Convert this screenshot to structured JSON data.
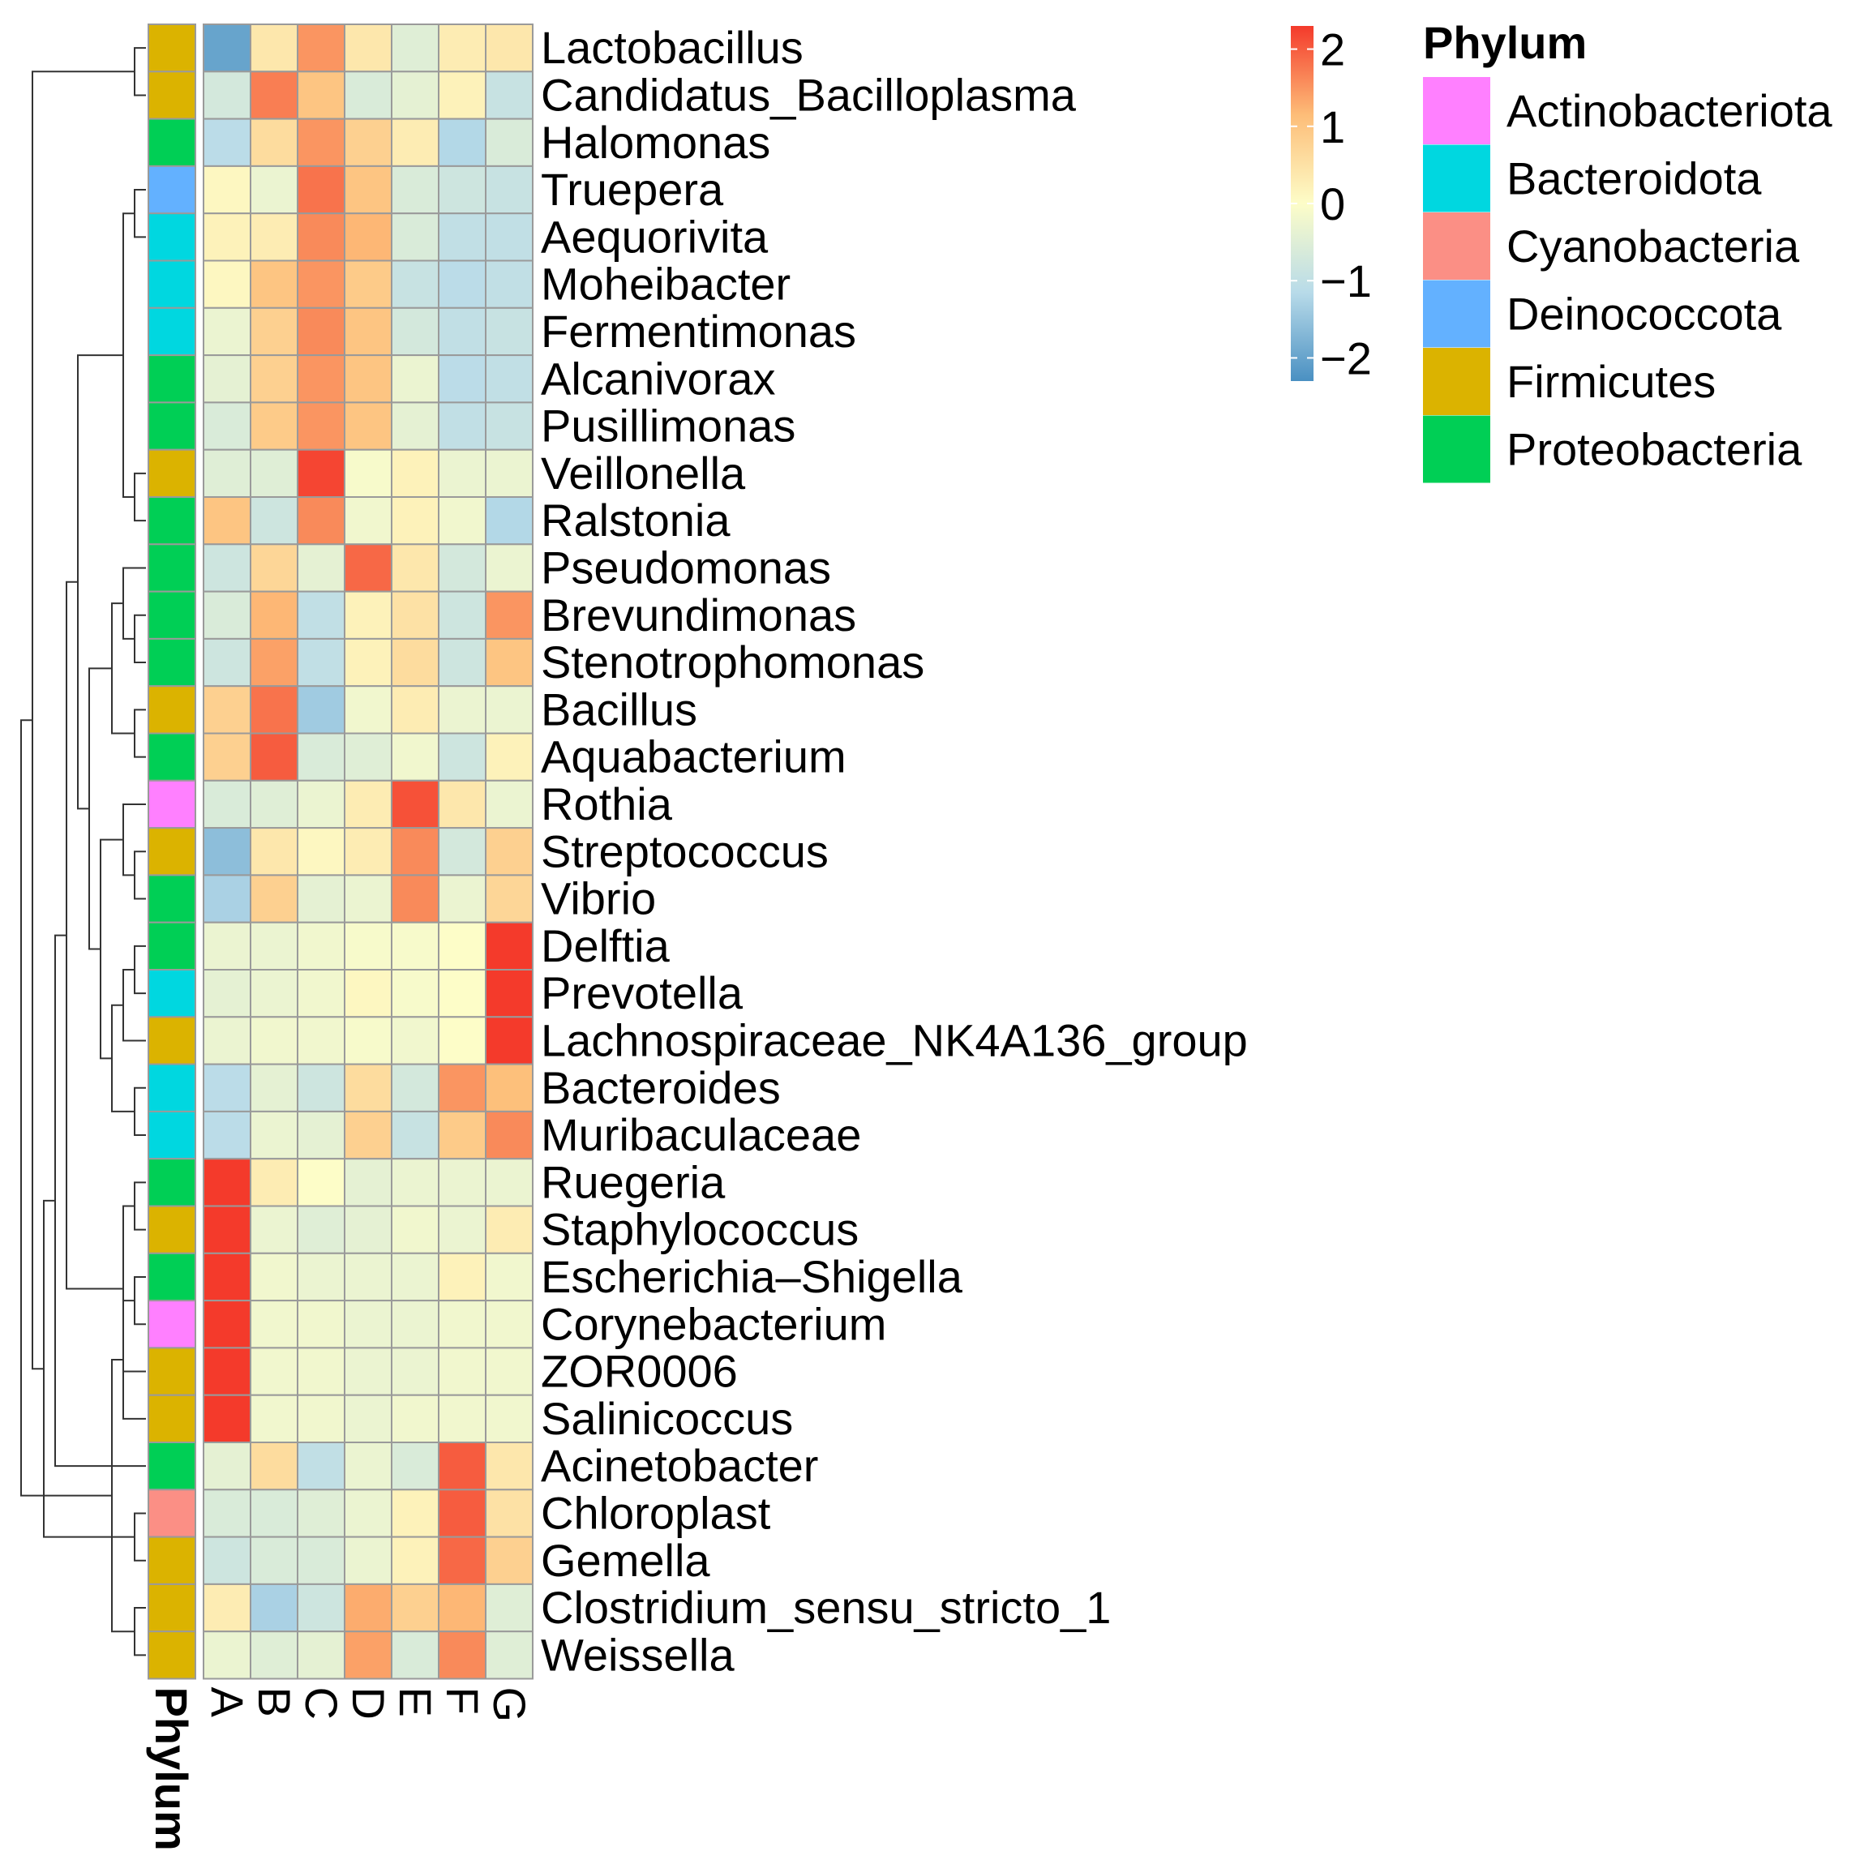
{
  "chart_data": {
    "type": "heatmap",
    "title": "",
    "columns": [
      "A",
      "B",
      "C",
      "D",
      "E",
      "F",
      "G"
    ],
    "annotation_column_label": "Phylum",
    "rows": [
      {
        "name": "Lactobacillus",
        "phylum": "Firmicutes",
        "values": [
          -2.0,
          0.4,
          1.5,
          0.4,
          -0.5,
          0.3,
          0.4
        ]
      },
      {
        "name": "Candidatus_Bacilloplasma",
        "phylum": "Firmicutes",
        "values": [
          -0.7,
          1.7,
          1.0,
          -0.6,
          -0.4,
          0.2,
          -0.9
        ]
      },
      {
        "name": "Halomonas",
        "phylum": "Proteobacteria",
        "values": [
          -1.1,
          0.6,
          1.5,
          0.8,
          0.3,
          -1.2,
          -0.6
        ]
      },
      {
        "name": "Truepera",
        "phylum": "Deinococcota",
        "values": [
          0.1,
          -0.3,
          1.8,
          1.0,
          -0.6,
          -0.8,
          -0.9
        ]
      },
      {
        "name": "Aequorivita",
        "phylum": "Bacteroidota",
        "values": [
          0.2,
          0.3,
          1.6,
          1.2,
          -0.6,
          -1.0,
          -1.0
        ]
      },
      {
        "name": "Moheibacter",
        "phylum": "Bacteroidota",
        "values": [
          0.1,
          1.0,
          1.5,
          0.9,
          -0.9,
          -1.1,
          -1.0
        ]
      },
      {
        "name": "Fermentimonas",
        "phylum": "Bacteroidota",
        "values": [
          -0.3,
          0.8,
          1.6,
          1.0,
          -0.7,
          -1.0,
          -0.9
        ]
      },
      {
        "name": "Alcanivorax",
        "phylum": "Proteobacteria",
        "values": [
          -0.4,
          0.8,
          1.5,
          1.0,
          -0.3,
          -1.1,
          -1.0
        ]
      },
      {
        "name": "Pusillimonas",
        "phylum": "Proteobacteria",
        "values": [
          -0.6,
          0.9,
          1.5,
          1.0,
          -0.4,
          -1.0,
          -0.9
        ]
      },
      {
        "name": "Veillonella",
        "phylum": "Firmicutes",
        "values": [
          -0.5,
          -0.5,
          2.2,
          -0.1,
          0.2,
          -0.3,
          -0.3
        ]
      },
      {
        "name": "Ralstonia",
        "phylum": "Proteobacteria",
        "values": [
          1.0,
          -0.8,
          1.6,
          -0.2,
          0.2,
          -0.2,
          -1.2
        ]
      },
      {
        "name": "Pseudomonas",
        "phylum": "Proteobacteria",
        "values": [
          -0.8,
          0.7,
          -0.4,
          1.9,
          0.4,
          -0.7,
          -0.3
        ]
      },
      {
        "name": "Brevundimonas",
        "phylum": "Proteobacteria",
        "values": [
          -0.6,
          1.2,
          -1.0,
          0.2,
          0.5,
          -0.8,
          1.5
        ]
      },
      {
        "name": "Stenotrophomonas",
        "phylum": "Proteobacteria",
        "values": [
          -0.8,
          1.4,
          -1.0,
          0.2,
          0.6,
          -0.8,
          1.0
        ]
      },
      {
        "name": "Bacillus",
        "phylum": "Firmicutes",
        "values": [
          0.8,
          1.8,
          -1.4,
          -0.2,
          0.3,
          -0.3,
          -0.3
        ]
      },
      {
        "name": "Aquabacterium",
        "phylum": "Proteobacteria",
        "values": [
          0.8,
          2.0,
          -0.6,
          -0.5,
          -0.2,
          -0.8,
          0.2
        ]
      },
      {
        "name": "Rothia",
        "phylum": "Actinobacteriota",
        "values": [
          -0.6,
          -0.5,
          -0.3,
          0.3,
          2.1,
          0.4,
          -0.3
        ]
      },
      {
        "name": "Streptococcus",
        "phylum": "Firmicutes",
        "values": [
          -1.6,
          0.4,
          0.1,
          0.3,
          1.6,
          -0.7,
          0.8
        ]
      },
      {
        "name": "Vibrio",
        "phylum": "Proteobacteria",
        "values": [
          -1.3,
          0.8,
          -0.4,
          -0.3,
          1.6,
          -0.3,
          0.7
        ]
      },
      {
        "name": "Delftia",
        "phylum": "Proteobacteria",
        "values": [
          -0.3,
          -0.3,
          -0.2,
          -0.1,
          -0.1,
          0.0,
          2.3
        ]
      },
      {
        "name": "Prevotella",
        "phylum": "Bacteroidota",
        "values": [
          -0.4,
          -0.3,
          -0.2,
          0.1,
          -0.1,
          0.0,
          2.3
        ]
      },
      {
        "name": "Lachnospiraceae_NK4A136_group",
        "phylum": "Firmicutes",
        "values": [
          -0.3,
          -0.2,
          -0.2,
          -0.1,
          -0.2,
          0.0,
          2.3
        ]
      },
      {
        "name": "Bacteroides",
        "phylum": "Bacteroidota",
        "values": [
          -1.1,
          -0.4,
          -0.8,
          0.6,
          -0.7,
          1.5,
          1.1
        ]
      },
      {
        "name": "Muribaculaceae",
        "phylum": "Bacteroidota",
        "values": [
          -1.1,
          -0.3,
          -0.4,
          0.8,
          -0.9,
          0.9,
          1.6
        ]
      },
      {
        "name": "Ruegeria",
        "phylum": "Proteobacteria",
        "values": [
          2.3,
          0.3,
          0.0,
          -0.4,
          -0.3,
          -0.3,
          -0.3
        ]
      },
      {
        "name": "Staphylococcus",
        "phylum": "Firmicutes",
        "values": [
          2.3,
          -0.3,
          -0.5,
          -0.4,
          -0.2,
          -0.3,
          0.3
        ]
      },
      {
        "name": "Escherichia–Shigella",
        "phylum": "Proteobacteria",
        "values": [
          2.3,
          -0.2,
          -0.3,
          -0.3,
          -0.3,
          0.2,
          -0.2
        ]
      },
      {
        "name": "Corynebacterium",
        "phylum": "Actinobacteriota",
        "values": [
          2.3,
          -0.2,
          -0.2,
          -0.3,
          -0.3,
          -0.2,
          -0.2
        ]
      },
      {
        "name": "ZOR0006",
        "phylum": "Firmicutes",
        "values": [
          2.3,
          -0.2,
          -0.2,
          -0.3,
          -0.3,
          -0.2,
          -0.2
        ]
      },
      {
        "name": "Salinicoccus",
        "phylum": "Firmicutes",
        "values": [
          2.3,
          -0.2,
          -0.2,
          -0.3,
          -0.2,
          -0.2,
          -0.2
        ]
      },
      {
        "name": "Acinetobacter",
        "phylum": "Proteobacteria",
        "values": [
          -0.4,
          0.6,
          -1.0,
          -0.3,
          -0.6,
          2.0,
          0.4
        ]
      },
      {
        "name": "Chloroplast",
        "phylum": "Cyanobacteria",
        "values": [
          -0.6,
          -0.6,
          -0.5,
          -0.3,
          0.2,
          2.0,
          0.5
        ]
      },
      {
        "name": "Gemella",
        "phylum": "Firmicutes",
        "values": [
          -0.8,
          -0.6,
          -0.6,
          -0.3,
          0.2,
          1.9,
          0.8
        ]
      },
      {
        "name": "Clostridium_sensu_stricto_1",
        "phylum": "Firmicutes",
        "values": [
          0.3,
          -1.3,
          -0.8,
          1.3,
          0.8,
          1.2,
          -0.5
        ]
      },
      {
        "name": "Weissella",
        "phylum": "Firmicutes",
        "values": [
          -0.3,
          -0.5,
          -0.4,
          1.4,
          -0.6,
          1.6,
          -0.5
        ]
      }
    ],
    "color_scale": {
      "min": -2.3,
      "max": 2.3,
      "ticks": [
        2,
        1,
        0,
        -1,
        -2
      ],
      "tick_labels": [
        "2",
        "1",
        "0",
        "−1",
        "−2"
      ],
      "stops": [
        {
          "v": -2.3,
          "c": "#4a90c2"
        },
        {
          "v": -1.15,
          "c": "#b8dbe9"
        },
        {
          "v": 0,
          "c": "#fdfdc8"
        },
        {
          "v": 1.15,
          "c": "#fdbd78"
        },
        {
          "v": 2.3,
          "c": "#f43a2b"
        }
      ]
    },
    "phylum_legend": {
      "title": "Phylum",
      "items": [
        {
          "label": "Actinobacteriota",
          "color": "#ff80ff"
        },
        {
          "label": "Bacteroidota",
          "color": "#00d7e0"
        },
        {
          "label": "Cyanobacteria",
          "color": "#fb8f85"
        },
        {
          "label": "Deinococcota",
          "color": "#63b1ff"
        },
        {
          "label": "Firmicutes",
          "color": "#dbb300"
        },
        {
          "label": "Proteobacteria",
          "color": "#00cf55"
        }
      ]
    },
    "row_dendrogram": [
      [
        0,
        1
      ],
      [
        3,
        4
      ],
      [
        37,
        5
      ],
      [
        38,
        6
      ],
      [
        39,
        7
      ],
      [
        40,
        8
      ],
      [
        2,
        41
      ],
      [
        9,
        10
      ],
      [
        36,
        42
      ],
      [
        14,
        15
      ],
      [
        12,
        13
      ],
      [
        11,
        45
      ],
      [
        44,
        46
      ],
      [
        17,
        18
      ],
      [
        16,
        48
      ],
      [
        19,
        20
      ],
      [
        50,
        21
      ],
      [
        22,
        23
      ],
      [
        51,
        52
      ],
      [
        49,
        53
      ],
      [
        47,
        54
      ],
      [
        43,
        55
      ],
      [
        24,
        25
      ],
      [
        26,
        27
      ],
      [
        57,
        28
      ],
      [
        58,
        29
      ],
      [
        56,
        59
      ],
      [
        31,
        32
      ],
      [
        30,
        61
      ],
      [
        33,
        34
      ],
      [
        62,
        63
      ],
      [
        60,
        64
      ],
      [
        35,
        65
      ],
      [
        66,
        67
      ]
    ]
  }
}
